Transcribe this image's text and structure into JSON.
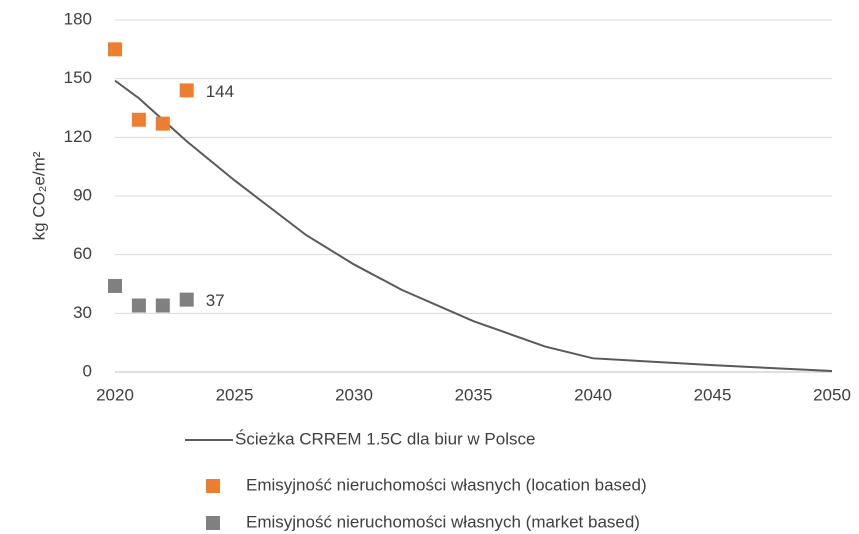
{
  "chart_data": {
    "type": "line",
    "y_label": "kg CO₂e/m²",
    "xlim": [
      2020,
      2050
    ],
    "xticks": [
      2020,
      2025,
      2030,
      2035,
      2040,
      2045,
      2050
    ],
    "ylim": [
      0,
      180
    ],
    "yticks": [
      0,
      30,
      60,
      90,
      120,
      150,
      180
    ],
    "grid": true,
    "legend": "bottom",
    "series": [
      {
        "name": "Ścieżka CRREM 1.5C dla biur w Polsce",
        "type": "line",
        "color": "#595959",
        "x": [
          2020,
          2021,
          2022,
          2023,
          2025,
          2028,
          2030,
          2032,
          2035,
          2038,
          2040,
          2045,
          2050
        ],
        "values": [
          149,
          140,
          129,
          118,
          98,
          70,
          55,
          42,
          26,
          13,
          7,
          3.5,
          0.5
        ]
      },
      {
        "name": "Emisyjność nieruchomości własnych (location based)",
        "type": "scatter",
        "color": "#ED7D31",
        "x": [
          2020,
          2021,
          2022,
          2023
        ],
        "values": [
          165,
          129,
          127,
          144
        ],
        "value_labels": [
          null,
          null,
          null,
          "144"
        ]
      },
      {
        "name": "Emisyjność nieruchomości własnych (market based)",
        "type": "scatter",
        "color": "#808080",
        "x": [
          2020,
          2021,
          2022,
          2023
        ],
        "values": [
          44,
          34,
          34,
          37
        ],
        "value_labels": [
          null,
          null,
          null,
          "37"
        ]
      }
    ]
  }
}
